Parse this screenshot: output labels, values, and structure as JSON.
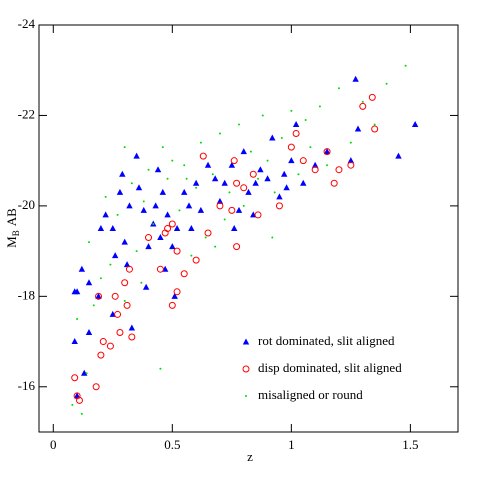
{
  "chart_data": {
    "type": "scatter",
    "x_label": "z",
    "y_label": "M",
    "y_label_sub": "B",
    "y_label_suffix": "AB",
    "xlim": [
      -0.06,
      1.7
    ],
    "xticks": [
      0,
      0.5,
      1,
      1.5
    ],
    "ylim": [
      -15,
      -24
    ],
    "yticks": [
      -24,
      -22,
      -20,
      -18,
      -16
    ],
    "series": [
      {
        "name": "rot dominated, slit aligned",
        "color": "#0000ff",
        "marker": "triangle",
        "x": [
          0.09,
          0.1,
          0.12,
          0.15,
          0.09,
          0.13,
          0.19,
          0.2,
          0.22,
          0.25,
          0.26,
          0.28,
          0.29,
          0.3,
          0.31,
          0.32,
          0.33,
          0.35,
          0.36,
          0.38,
          0.39,
          0.4,
          0.42,
          0.43,
          0.44,
          0.45,
          0.46,
          0.47,
          0.48,
          0.5,
          0.51,
          0.52,
          0.55,
          0.57,
          0.58,
          0.6,
          0.62,
          0.65,
          0.68,
          0.7,
          0.72,
          0.75,
          0.76,
          0.78,
          0.8,
          0.82,
          0.84,
          0.85,
          0.87,
          0.9,
          0.92,
          0.95,
          0.97,
          0.98,
          1.0,
          1.02,
          1.05,
          1.1,
          1.15,
          1.25,
          1.27,
          1.28,
          1.45,
          1.52,
          0.1,
          0.25,
          0.15
        ],
        "values": [
          -18.1,
          -18.1,
          -18.6,
          -18.3,
          -17.0,
          -16.3,
          -18.0,
          -19.5,
          -19.8,
          -19.5,
          -18.9,
          -20.3,
          -20.7,
          -19.2,
          -18.7,
          -20.0,
          -17.3,
          -21.1,
          -20.4,
          -19.9,
          -18.2,
          -19.1,
          -19.6,
          -20.0,
          -20.8,
          -19.3,
          -20.3,
          -18.6,
          -19.8,
          -19.1,
          -18.0,
          -19.5,
          -20.3,
          -20.0,
          -19.5,
          -20.5,
          -19.9,
          -20.9,
          -20.6,
          -20.1,
          -20.5,
          -20.9,
          -19.5,
          -19.9,
          -21.2,
          -20.3,
          -19.8,
          -20.5,
          -20.8,
          -20.6,
          -21.5,
          -20.2,
          -20.7,
          -20.4,
          -21.0,
          -21.8,
          -20.5,
          -20.9,
          -21.2,
          -21.0,
          -22.8,
          -21.7,
          -21.1,
          -21.8,
          -15.8,
          -17.6,
          -17.2
        ]
      },
      {
        "name": "disp dominated, slit aligned",
        "color": "#ff0000",
        "marker": "circle",
        "x": [
          0.09,
          0.1,
          0.11,
          0.2,
          0.21,
          0.24,
          0.18,
          0.19,
          0.26,
          0.27,
          0.28,
          0.3,
          0.31,
          0.33,
          0.32,
          0.4,
          0.45,
          0.47,
          0.48,
          0.5,
          0.52,
          0.5,
          0.52,
          0.55,
          0.6,
          0.63,
          0.65,
          0.7,
          0.75,
          0.77,
          0.77,
          0.76,
          0.8,
          0.84,
          0.86,
          0.95,
          1.0,
          1.02,
          1.05,
          1.1,
          1.15,
          1.18,
          1.2,
          1.25,
          1.3,
          1.34,
          1.35
        ],
        "values": [
          -16.2,
          -15.8,
          -15.7,
          -16.7,
          -17.0,
          -16.9,
          -16.0,
          -18.0,
          -18.0,
          -17.6,
          -17.2,
          -18.3,
          -17.8,
          -17.1,
          -18.6,
          -19.3,
          -18.6,
          -19.4,
          -19.5,
          -19.6,
          -19.0,
          -17.8,
          -18.1,
          -18.5,
          -18.8,
          -21.1,
          -19.4,
          -20.0,
          -19.9,
          -19.1,
          -20.5,
          -21.0,
          -20.4,
          -20.7,
          -19.8,
          -20.0,
          -21.3,
          -21.6,
          -21.0,
          -20.8,
          -21.2,
          -20.5,
          -20.8,
          -20.9,
          -22.2,
          -22.4,
          -21.7
        ]
      },
      {
        "name": "misaligned or round",
        "color": "#00dd00",
        "marker": "dot",
        "x": [
          0.08,
          0.1,
          0.12,
          0.14,
          0.15,
          0.17,
          0.2,
          0.22,
          0.24,
          0.27,
          0.3,
          0.33,
          0.35,
          0.37,
          0.4,
          0.42,
          0.45,
          0.48,
          0.5,
          0.53,
          0.55,
          0.58,
          0.6,
          0.62,
          0.64,
          0.67,
          0.7,
          0.72,
          0.74,
          0.78,
          0.8,
          0.83,
          0.86,
          0.88,
          0.9,
          0.93,
          0.96,
          1.0,
          1.03,
          1.06,
          1.08,
          1.12,
          1.15,
          1.2,
          1.25,
          1.3,
          1.35,
          1.4,
          1.48,
          0.46,
          0.3,
          0.38,
          0.56,
          0.68,
          0.92
        ],
        "values": [
          -15.6,
          -17.5,
          -15.4,
          -16.3,
          -19.2,
          -17.8,
          -18.4,
          -20.2,
          -18.7,
          -19.8,
          -17.9,
          -20.5,
          -19.0,
          -18.3,
          -20.8,
          -19.6,
          -16.4,
          -20.6,
          -21.0,
          -19.9,
          -20.9,
          -18.9,
          -20.4,
          -21.4,
          -19.3,
          -20.7,
          -21.6,
          -19.7,
          -20.3,
          -21.8,
          -20.0,
          -21.2,
          -20.6,
          -22.0,
          -21.0,
          -20.3,
          -21.5,
          -22.1,
          -20.7,
          -21.9,
          -21.3,
          -22.2,
          -20.9,
          -22.6,
          -21.4,
          -22.3,
          -21.8,
          -22.7,
          -23.1,
          -21.3,
          -21.3,
          -20.1,
          -20.6,
          -19.1,
          -19.3
        ]
      }
    ]
  }
}
